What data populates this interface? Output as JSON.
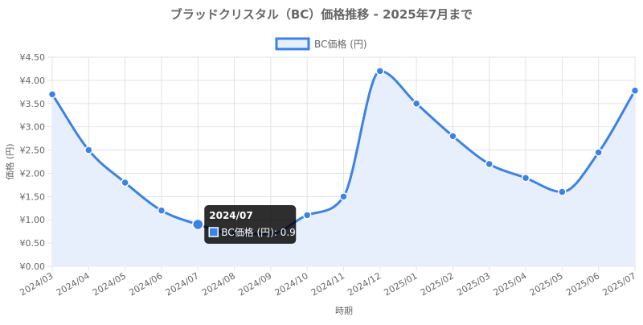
{
  "chart_data": {
    "type": "line",
    "title": "ブラッドクリスタル（BC）価格推移 - 2025年7月まで",
    "xlabel": "時期",
    "ylabel": "価格 (円)",
    "categories": [
      "2024/03",
      "2024/04",
      "2024/05",
      "2024/06",
      "2024/07",
      "2024/08",
      "2024/09",
      "2024/10",
      "2024/11",
      "2024/12",
      "2025/01",
      "2025/02",
      "2025/03",
      "2025/04",
      "2025/05",
      "2025/06",
      "2025/07"
    ],
    "series": [
      {
        "name": "BC価格 (円)",
        "values": [
          3.7,
          2.5,
          1.8,
          1.2,
          0.9,
          0.7,
          0.7,
          1.1,
          1.5,
          4.2,
          3.5,
          2.8,
          2.2,
          1.9,
          1.6,
          2.45,
          3.78
        ]
      }
    ],
    "ylim": [
      0,
      4.5
    ],
    "ytick_step": 0.5,
    "ytick_labels": [
      "¥0.00",
      "¥0.50",
      "¥1.00",
      "¥1.50",
      "¥2.00",
      "¥2.50",
      "¥3.00",
      "¥3.50",
      "¥4.00",
      "¥4.50"
    ],
    "grid": true,
    "legend_position": "top",
    "colors": {
      "line": "#3b82e8",
      "fill": "#e8effc",
      "grid": "#e3e3e3",
      "text": "#666666"
    },
    "tooltip": {
      "category": "2024/07",
      "title": "2024/07",
      "label": "BC価格 (円): 0.9"
    }
  }
}
